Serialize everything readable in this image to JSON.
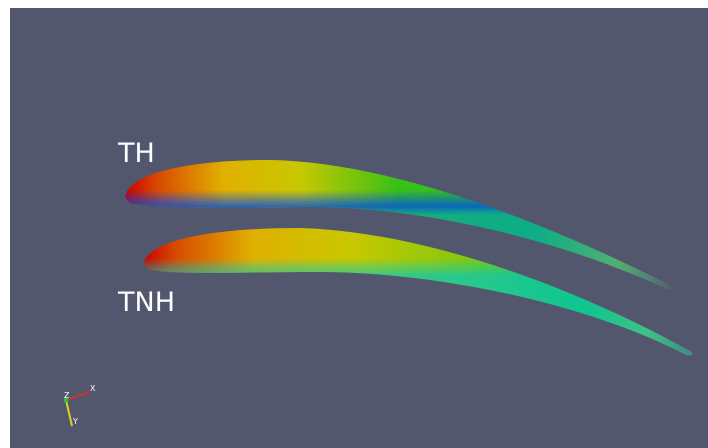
{
  "labels": {
    "top_blade": "TH",
    "bottom_blade": "TNH"
  },
  "axes": {
    "x": "X",
    "y": "Y",
    "z": "Z"
  }
}
